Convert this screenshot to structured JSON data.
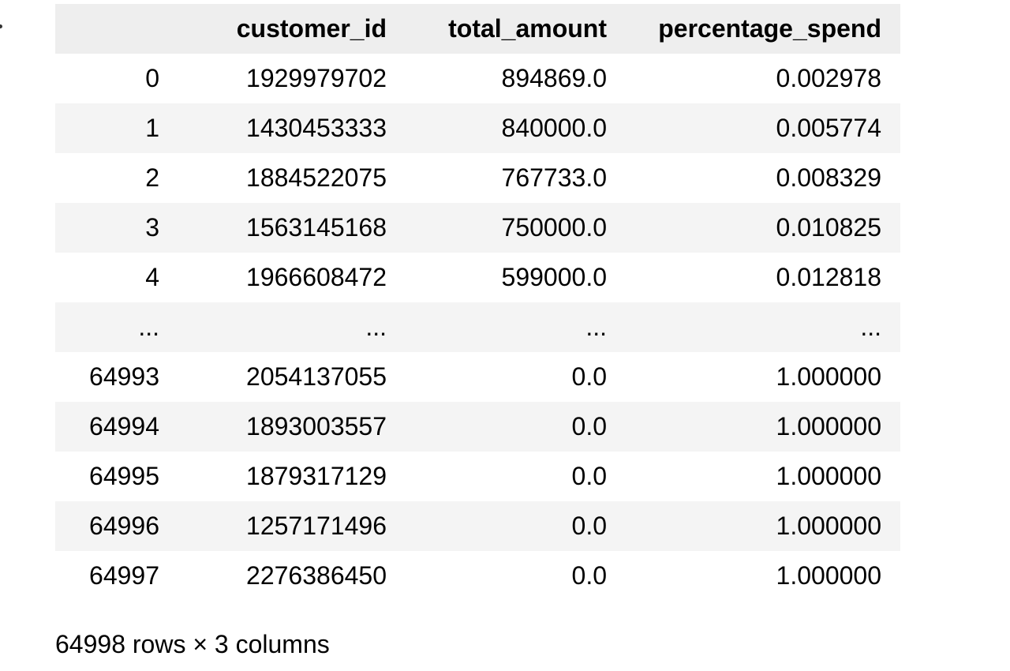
{
  "table": {
    "index_header": "",
    "columns": [
      "customer_id",
      "total_amount",
      "percentage_spend"
    ],
    "rows": [
      {
        "index": "0",
        "customer_id": "1929979702",
        "total_amount": "894869.0",
        "percentage_spend": "0.002978"
      },
      {
        "index": "1",
        "customer_id": "1430453333",
        "total_amount": "840000.0",
        "percentage_spend": "0.005774"
      },
      {
        "index": "2",
        "customer_id": "1884522075",
        "total_amount": "767733.0",
        "percentage_spend": "0.008329"
      },
      {
        "index": "3",
        "customer_id": "1563145168",
        "total_amount": "750000.0",
        "percentage_spend": "0.010825"
      },
      {
        "index": "4",
        "customer_id": "1966608472",
        "total_amount": "599000.0",
        "percentage_spend": "0.012818"
      },
      {
        "index": "...",
        "customer_id": "...",
        "total_amount": "...",
        "percentage_spend": "..."
      },
      {
        "index": "64993",
        "customer_id": "2054137055",
        "total_amount": "0.0",
        "percentage_spend": "1.000000"
      },
      {
        "index": "64994",
        "customer_id": "1893003557",
        "total_amount": "0.0",
        "percentage_spend": "1.000000"
      },
      {
        "index": "64995",
        "customer_id": "1879317129",
        "total_amount": "0.0",
        "percentage_spend": "1.000000"
      },
      {
        "index": "64996",
        "customer_id": "1257171496",
        "total_amount": "0.0",
        "percentage_spend": "1.000000"
      },
      {
        "index": "64997",
        "customer_id": "2276386450",
        "total_amount": "0.0",
        "percentage_spend": "1.000000"
      }
    ]
  },
  "shape_text": "64998 rows × 3 columns"
}
